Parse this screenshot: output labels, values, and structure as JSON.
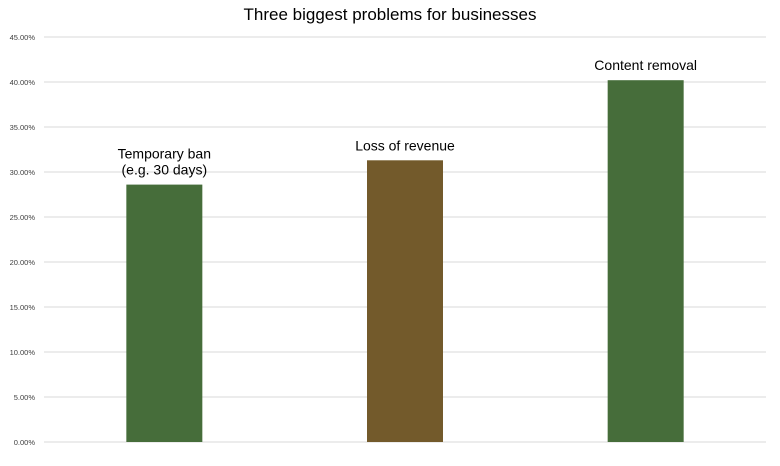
{
  "chart_data": {
    "type": "bar",
    "title": "Three biggest problems for businesses",
    "xlabel": "",
    "ylabel": "",
    "categories": [
      [
        "Temporary ban",
        "(e.g. 30 days)"
      ],
      [
        "Loss of revenue"
      ],
      [
        "Content removal"
      ]
    ],
    "values": [
      28.6,
      31.3,
      40.2
    ],
    "bar_colors": [
      "#466d3a",
      "#735a2b",
      "#466d3a"
    ],
    "ylim": [
      0,
      45
    ],
    "yticks": [
      0,
      5,
      10,
      15,
      20,
      25,
      30,
      35,
      40,
      45
    ],
    "ytick_labels": [
      "0.00%",
      "5.00%",
      "10.00%",
      "15.00%",
      "20.00%",
      "25.00%",
      "30.00%",
      "35.00%",
      "40.00%",
      "45.00%"
    ],
    "grid": true,
    "legend": "none"
  }
}
